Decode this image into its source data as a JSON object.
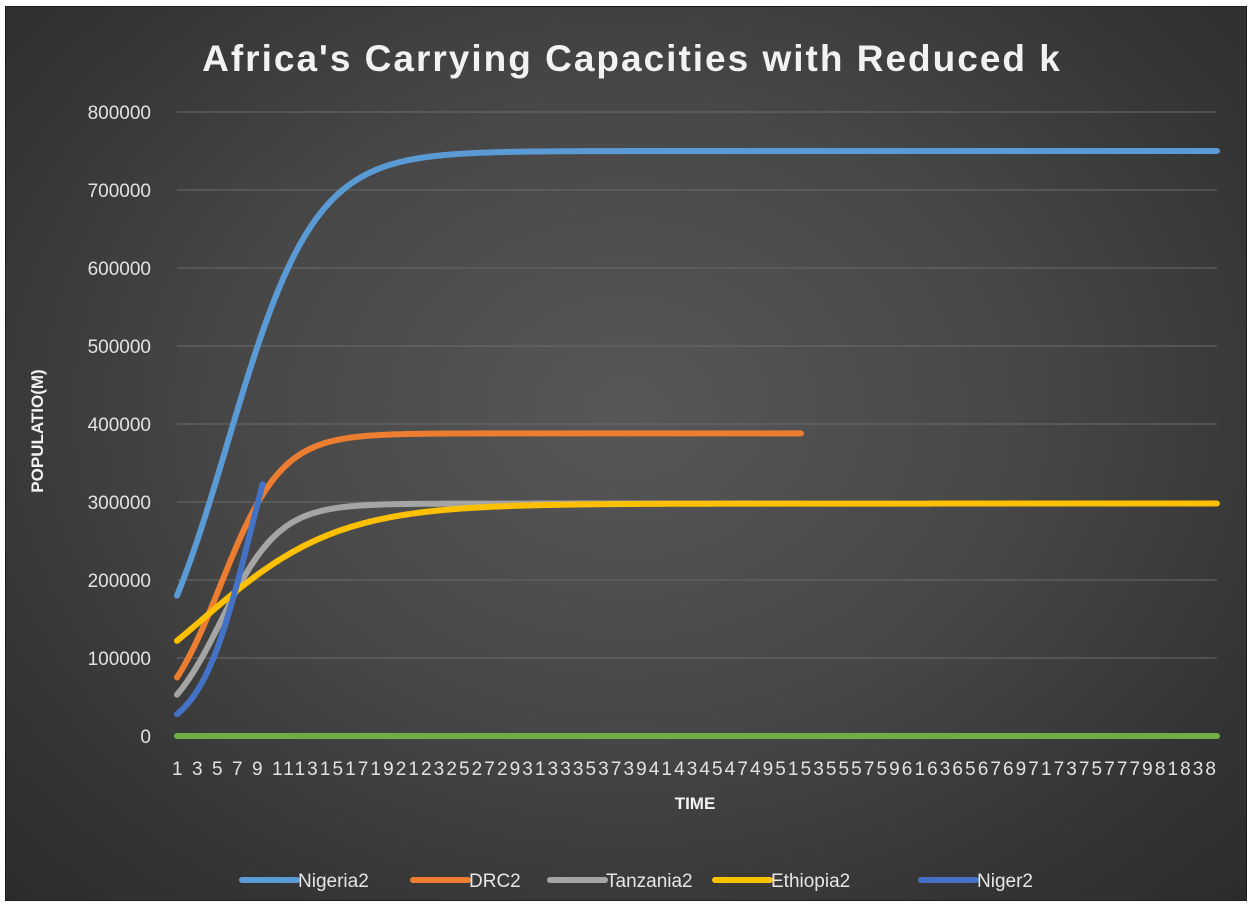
{
  "chart_data": {
    "type": "line",
    "title": "Africa's Carrying Capacities with Reduced k",
    "xlabel": "TIME",
    "ylabel": "POPULATIO(M)",
    "ylim": [
      0,
      800000
    ],
    "yticks": [
      0,
      100000,
      200000,
      300000,
      400000,
      500000,
      600000,
      700000,
      800000
    ],
    "x_range": [
      1,
      86
    ],
    "x_tick_labels_text": "1 3 5 7 9 111315171921232527293133353739414345474951535557596163656769717375777981838",
    "grid": true,
    "legend_position": "bottom",
    "colors": {
      "Nigeria2": "#5b9bd5",
      "DRC2": "#ed7d31",
      "Tanzania2": "#a5a5a5",
      "Ethiopia2": "#ffc000",
      "Niger2": "#4472c4",
      "baseline": "#70ad47"
    },
    "series": [
      {
        "name": "Nigeria2",
        "type": "logistic",
        "K": 750000,
        "p0": 180000,
        "r": 0.28,
        "x_start": 1,
        "x_end": 86
      },
      {
        "name": "DRC2",
        "type": "logistic",
        "K": 388000,
        "p0": 75000,
        "r": 0.4,
        "x_start": 1,
        "x_end": 52
      },
      {
        "name": "Tanzania2",
        "type": "logistic",
        "K": 298000,
        "p0": 53000,
        "r": 0.42,
        "x_start": 1,
        "x_end": 52
      },
      {
        "name": "Ethiopia2",
        "type": "logistic",
        "K": 298000,
        "p0": 122000,
        "r": 0.18,
        "x_start": 1,
        "x_end": 86
      },
      {
        "name": "Niger2",
        "type": "logistic",
        "K": 520000,
        "p0": 28000,
        "r": 0.48,
        "x_start": 1,
        "x_end": 8
      }
    ],
    "baseline_value": 0,
    "legend": [
      "Nigeria2",
      "DRC2",
      "Tanzania2",
      "Ethiopia2",
      "Niger2"
    ]
  }
}
